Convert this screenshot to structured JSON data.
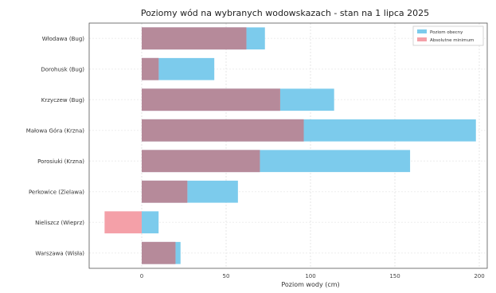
{
  "chart_data": {
    "type": "bar",
    "orientation": "horizontal",
    "title": "Poziomy wód na wybranych wodowskazach - stan na 1 lipca 2025",
    "xlabel": "Poziom wody (cm)",
    "ylabel": "",
    "xlim": [
      -22,
      202
    ],
    "xticks": [
      0,
      50,
      100,
      150,
      200
    ],
    "xtick_labels": [
      "0",
      "50",
      "100",
      "150",
      "200"
    ],
    "grid": true,
    "legend_position": "top-right",
    "categories": [
      "Włodawa (Bug)",
      "Dorohusk (Bug)",
      "Krzyczew (Bug)",
      "Małowa Góra (Krzna)",
      "Porosiuki (Krzna)",
      "Perkowice (Zielawa)",
      "Nieliszcz (Wieprz)",
      "Warszawa (Wisła)"
    ],
    "series": [
      {
        "name": "Poziom obecny",
        "color": "#7ccbec",
        "values": [
          73,
          43,
          114,
          198,
          159,
          57,
          10,
          23
        ]
      },
      {
        "name": "Absolutne minimum",
        "color": "#f4a0a8",
        "values": [
          62,
          10,
          82,
          96,
          70,
          27,
          -22,
          20
        ]
      }
    ],
    "overlap_color": "#b68a9a"
  }
}
